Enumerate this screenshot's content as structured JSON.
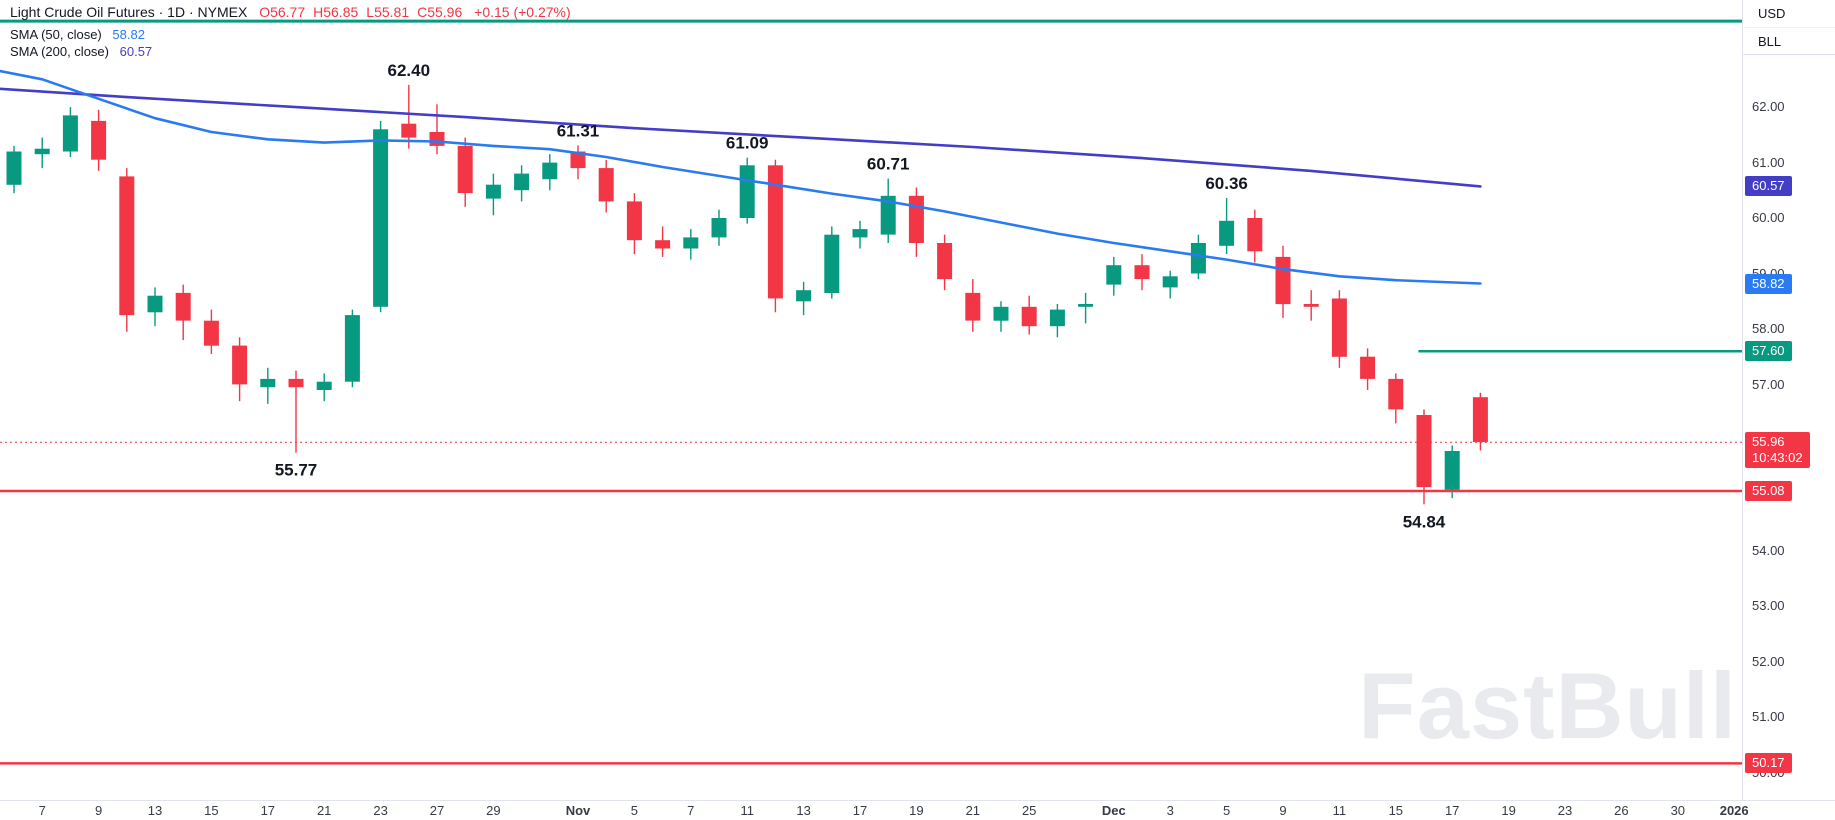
{
  "header": {
    "symbol": "Light Crude Oil Futures · 1D · NYMEX",
    "ohlc": [
      "O56.77",
      "H56.85",
      "L55.81",
      "C55.96"
    ],
    "change": "+0.15 (+0.27%)"
  },
  "legend": [
    {
      "label": "SMA (50, close)",
      "value": "58.82",
      "color": "#2a7bf2"
    },
    {
      "label": "SMA (200, close)",
      "value": "60.57",
      "color": "#443dc6"
    }
  ],
  "axis_toggle": {
    "currency": "USD",
    "unit": "BLL"
  },
  "watermark": "FastBull",
  "colors": {
    "up": "#089981",
    "down": "#f23645",
    "sma50": "#2a7bf2",
    "sma200": "#443dc6",
    "axis_text": "#363a45",
    "border": "#e0e3eb",
    "annotation_text": "#131722",
    "watermark": "#e8eaed"
  },
  "chart_data": {
    "type": "candlestick",
    "title": "Light Crude Oil Futures · 1D · NYMEX",
    "ylim": [
      49.51,
      63.93
    ],
    "grid": false,
    "candle_format": [
      "date",
      "open",
      "high",
      "low",
      "close"
    ],
    "candles": [
      [
        "Oct 6",
        60.6,
        61.3,
        60.45,
        61.2
      ],
      [
        "Oct 7",
        61.15,
        61.45,
        60.9,
        61.25
      ],
      [
        "Oct 8",
        61.2,
        62.0,
        61.1,
        61.85
      ],
      [
        "Oct 9",
        61.75,
        61.95,
        60.85,
        61.05
      ],
      [
        "Oct 10",
        60.75,
        60.9,
        57.95,
        58.25
      ],
      [
        "Oct 13",
        58.3,
        58.75,
        58.05,
        58.6
      ],
      [
        "Oct 14",
        58.65,
        58.8,
        57.8,
        58.15
      ],
      [
        "Oct 15",
        58.15,
        58.35,
        57.55,
        57.7
      ],
      [
        "Oct 16",
        57.7,
        57.85,
        56.7,
        57.0
      ],
      [
        "Oct 17",
        56.95,
        57.3,
        56.65,
        57.1
      ],
      [
        "Oct 20",
        57.1,
        57.25,
        55.77,
        56.95
      ],
      [
        "Oct 21",
        56.9,
        57.2,
        56.7,
        57.05
      ],
      [
        "Oct 22",
        57.05,
        58.35,
        56.95,
        58.25
      ],
      [
        "Oct 23",
        58.4,
        61.75,
        58.3,
        61.6
      ],
      [
        "Oct 24",
        61.7,
        62.4,
        61.25,
        61.45
      ],
      [
        "Oct 27",
        61.55,
        62.05,
        61.15,
        61.3
      ],
      [
        "Oct 28",
        61.3,
        61.45,
        60.2,
        60.45
      ],
      [
        "Oct 29",
        60.35,
        60.8,
        60.05,
        60.6
      ],
      [
        "Oct 30",
        60.5,
        60.95,
        60.3,
        60.8
      ],
      [
        "Oct 31",
        60.7,
        61.15,
        60.5,
        61.0
      ],
      [
        "Nov 3",
        61.2,
        61.31,
        60.7,
        60.9
      ],
      [
        "Nov 4",
        60.9,
        61.05,
        60.1,
        60.3
      ],
      [
        "Nov 5",
        60.3,
        60.45,
        59.35,
        59.6
      ],
      [
        "Nov 6",
        59.6,
        59.85,
        59.3,
        59.45
      ],
      [
        "Nov 7",
        59.45,
        59.8,
        59.25,
        59.65
      ],
      [
        "Nov 10",
        59.65,
        60.15,
        59.5,
        60.0
      ],
      [
        "Nov 11",
        60.0,
        61.09,
        59.9,
        60.95
      ],
      [
        "Nov 12",
        60.95,
        61.05,
        58.3,
        58.55
      ],
      [
        "Nov 13",
        58.5,
        58.85,
        58.25,
        58.7
      ],
      [
        "Nov 14",
        58.65,
        59.85,
        58.55,
        59.7
      ],
      [
        "Nov 17",
        59.65,
        59.95,
        59.45,
        59.8
      ],
      [
        "Nov 18",
        59.7,
        60.71,
        59.55,
        60.4
      ],
      [
        "Nov 19",
        60.4,
        60.55,
        59.3,
        59.55
      ],
      [
        "Nov 20",
        59.55,
        59.7,
        58.7,
        58.9
      ],
      [
        "Nov 21",
        58.65,
        58.9,
        57.95,
        58.15
      ],
      [
        "Nov 24",
        58.15,
        58.5,
        57.95,
        58.4
      ],
      [
        "Nov 25",
        58.4,
        58.6,
        57.9,
        58.05
      ],
      [
        "Nov 26",
        58.05,
        58.45,
        57.85,
        58.35
      ],
      [
        "Nov 28",
        58.4,
        58.65,
        58.1,
        58.45
      ],
      [
        "Dec 1",
        58.8,
        59.3,
        58.6,
        59.15
      ],
      [
        "Dec 2",
        59.15,
        59.35,
        58.7,
        58.9
      ],
      [
        "Dec 3",
        58.75,
        59.05,
        58.55,
        58.95
      ],
      [
        "Dec 4",
        59.0,
        59.7,
        58.9,
        59.55
      ],
      [
        "Dec 5",
        59.5,
        60.36,
        59.35,
        59.95
      ],
      [
        "Dec 8",
        60.0,
        60.15,
        59.2,
        59.4
      ],
      [
        "Dec 9",
        59.3,
        59.5,
        58.2,
        58.45
      ],
      [
        "Dec 10",
        58.45,
        58.7,
        58.15,
        58.4
      ],
      [
        "Dec 11",
        58.55,
        58.7,
        57.3,
        57.5
      ],
      [
        "Dec 12",
        57.5,
        57.65,
        56.9,
        57.1
      ],
      [
        "Dec 15",
        57.1,
        57.2,
        56.3,
        56.55
      ],
      [
        "Dec 16",
        56.45,
        56.55,
        54.84,
        55.15
      ],
      [
        "Dec 17",
        55.1,
        55.9,
        54.95,
        55.8
      ],
      [
        "Dec 18",
        56.77,
        56.85,
        55.81,
        55.96
      ]
    ],
    "sma50_points": [
      [
        -0.5,
        62.65
      ],
      [
        1,
        62.5
      ],
      [
        3,
        62.15
      ],
      [
        5,
        61.8
      ],
      [
        7,
        61.55
      ],
      [
        9,
        61.42
      ],
      [
        11,
        61.36
      ],
      [
        13,
        61.4
      ],
      [
        15,
        61.38
      ],
      [
        17,
        61.3
      ],
      [
        19,
        61.24
      ],
      [
        21,
        61.1
      ],
      [
        23,
        60.92
      ],
      [
        25,
        60.76
      ],
      [
        27,
        60.6
      ],
      [
        29,
        60.44
      ],
      [
        31,
        60.3
      ],
      [
        33,
        60.12
      ],
      [
        35,
        59.92
      ],
      [
        37,
        59.72
      ],
      [
        39,
        59.55
      ],
      [
        41,
        59.4
      ],
      [
        43,
        59.25
      ],
      [
        45,
        59.08
      ],
      [
        47,
        58.95
      ],
      [
        49,
        58.88
      ],
      [
        52,
        58.82
      ]
    ],
    "sma200_points": [
      [
        -0.5,
        62.33
      ],
      [
        4,
        62.18
      ],
      [
        10,
        62.0
      ],
      [
        16,
        61.82
      ],
      [
        22,
        61.62
      ],
      [
        28,
        61.45
      ],
      [
        34,
        61.28
      ],
      [
        40,
        61.08
      ],
      [
        46,
        60.85
      ],
      [
        52,
        60.57
      ]
    ],
    "levels": [
      {
        "price": 63.55,
        "color": "#089981",
        "stroke_width": 3,
        "from_i": null
      },
      {
        "price": 57.6,
        "color": "#089981",
        "stroke_width": 2.5,
        "from_i": 49.8
      },
      {
        "price": 55.08,
        "color": "#f23645",
        "stroke_width": 2.5,
        "from_i": null
      },
      {
        "price": 50.17,
        "color": "#f23645",
        "stroke_width": 2.5,
        "from_i": null
      }
    ],
    "annotations": [
      {
        "i": 14,
        "price": 62.4,
        "pos": "above",
        "text": "62.40"
      },
      {
        "i": 20,
        "price": 61.31,
        "pos": "above",
        "text": "61.31"
      },
      {
        "i": 26,
        "price": 61.09,
        "pos": "above",
        "text": "61.09"
      },
      {
        "i": 31,
        "price": 60.71,
        "pos": "above",
        "text": "60.71"
      },
      {
        "i": 43,
        "price": 60.36,
        "pos": "above",
        "text": "60.36"
      },
      {
        "i": 10,
        "price": 55.77,
        "pos": "below",
        "text": "55.77"
      },
      {
        "i": 50,
        "price": 54.84,
        "pos": "below",
        "text": "54.84"
      }
    ],
    "last_price": {
      "value": "55.96",
      "countdown": "10:43:02",
      "price": 55.96
    },
    "price_ticks": [
      "62.00",
      "61.00",
      "60.00",
      "59.00",
      "58.00",
      "57.00",
      "54.00",
      "53.00",
      "52.00",
      "51.00",
      "50.00"
    ],
    "axis_badges": [
      {
        "text": "60.57",
        "price": 60.57,
        "color": "#443dc6"
      },
      {
        "text": "58.82",
        "price": 58.82,
        "color": "#2a7bf2"
      },
      {
        "text": "57.60",
        "price": 57.6,
        "color": "#089981"
      },
      {
        "text": "55.08",
        "price": 55.08,
        "color": "#f23645"
      },
      {
        "text": "50.17",
        "price": 50.17,
        "color": "#f23645"
      }
    ],
    "time_labels": [
      {
        "i": 1,
        "label": "7"
      },
      {
        "i": 3,
        "label": "9"
      },
      {
        "i": 5,
        "label": "13"
      },
      {
        "i": 7,
        "label": "15"
      },
      {
        "i": 9,
        "label": "17"
      },
      {
        "i": 11,
        "label": "21"
      },
      {
        "i": 13,
        "label": "23"
      },
      {
        "i": 15,
        "label": "27"
      },
      {
        "i": 17,
        "label": "29"
      },
      {
        "i": 20,
        "label": "Nov"
      },
      {
        "i": 22,
        "label": "5"
      },
      {
        "i": 24,
        "label": "7"
      },
      {
        "i": 26,
        "label": "11"
      },
      {
        "i": 28,
        "label": "13"
      },
      {
        "i": 30,
        "label": "17"
      },
      {
        "i": 32,
        "label": "19"
      },
      {
        "i": 34,
        "label": "21"
      },
      {
        "i": 36,
        "label": "25"
      },
      {
        "i": 39,
        "label": "Dec"
      },
      {
        "i": 41,
        "label": "3"
      },
      {
        "i": 43,
        "label": "5"
      },
      {
        "i": 45,
        "label": "9"
      },
      {
        "i": 47,
        "label": "11"
      },
      {
        "i": 49,
        "label": "15"
      },
      {
        "i": 51,
        "label": "17"
      },
      {
        "i": 53,
        "label": "19"
      },
      {
        "i": 55,
        "label": "23"
      },
      {
        "i": 57,
        "label": "26"
      },
      {
        "i": 59,
        "label": "30"
      },
      {
        "i": 61,
        "label": "2026"
      }
    ]
  }
}
